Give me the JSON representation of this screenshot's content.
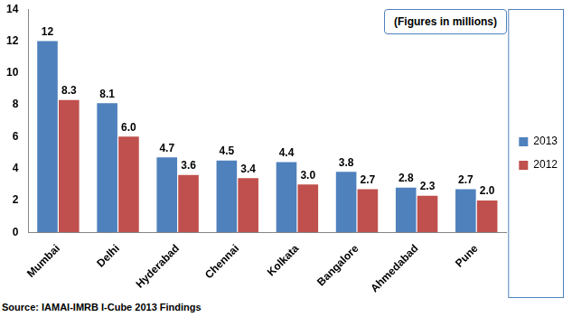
{
  "chart_data": {
    "type": "bar",
    "categories": [
      "Mumbai",
      "Delhi",
      "Hyderabad",
      "Chennai",
      "Kolkata",
      "Bangalore",
      "Ahmedabad",
      "Pune"
    ],
    "series": [
      {
        "name": "2013",
        "color": "#4f81bd",
        "values": [
          12,
          8.1,
          4.7,
          4.5,
          4.4,
          3.8,
          2.8,
          2.7
        ]
      },
      {
        "name": "2012",
        "color": "#c0504d",
        "values": [
          8.3,
          6.0,
          3.6,
          3.4,
          3.0,
          2.7,
          2.3,
          2.0
        ],
        "value_labels": [
          "8.3",
          "6.0",
          "3.6",
          "3.4",
          "3.0",
          "2.7",
          "2.3",
          "2.0"
        ]
      }
    ],
    "ylim": [
      0,
      14
    ],
    "yticks": [
      0,
      2,
      4,
      6,
      8,
      10,
      12,
      14
    ],
    "grid": false,
    "legend": "right",
    "data_labels": true,
    "annotations": [
      "(Figures in millions)"
    ],
    "source": "Source: IAMAI-IMRB I-Cube 2013 Findings"
  }
}
